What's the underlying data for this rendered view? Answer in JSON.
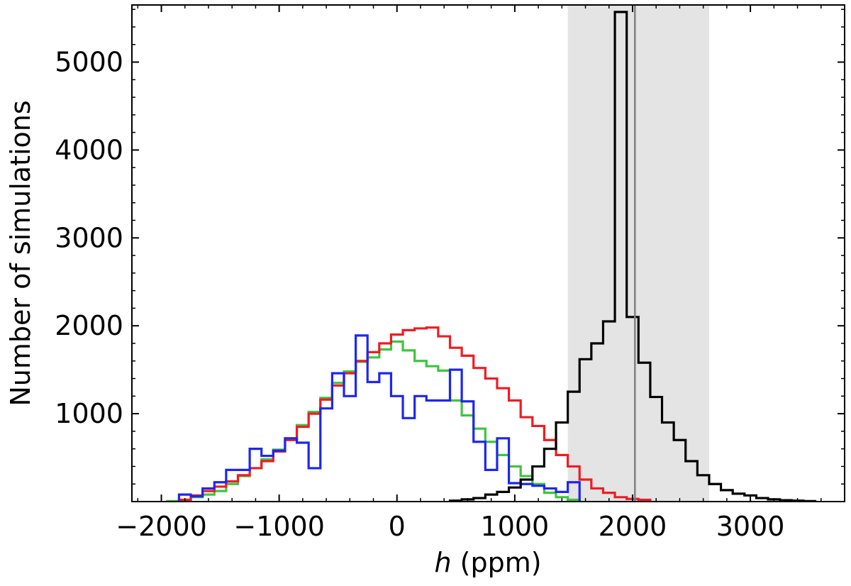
{
  "chart_data": {
    "type": "histogram",
    "title": "",
    "xlabel_italic": "h",
    "xlabel_rest": " (ppm)",
    "ylabel": "Number of simulations",
    "xlim": [
      -2250,
      3800
    ],
    "ylim": [
      0,
      5650
    ],
    "x_ticks": [
      -2000,
      -1000,
      0,
      1000,
      2000,
      3000
    ],
    "x_tick_labels": [
      "−2000",
      "−1000",
      "0",
      "1000",
      "2000",
      "3000"
    ],
    "y_ticks": [
      1000,
      2000,
      3000,
      4000,
      5000
    ],
    "y_tick_labels": [
      "1000",
      "2000",
      "3000",
      "4000",
      "5000"
    ],
    "shaded_band": {
      "x_range": [
        1450,
        2650
      ],
      "color": "#e4e4e4"
    },
    "vertical_line": {
      "x": 2020,
      "color": "#808080"
    },
    "bin_width": 100,
    "series": [
      {
        "color": "#3fc43f",
        "bin_start": -1950,
        "counts": [
          5,
          20,
          50,
          80,
          120,
          200,
          290,
          380,
          480,
          590,
          720,
          870,
          1020,
          1180,
          1350,
          1480,
          1590,
          1640,
          1730,
          1820,
          1720,
          1600,
          1540,
          1490,
          1150,
          980,
          830,
          680,
          530,
          400,
          290,
          200,
          100,
          50,
          20
        ]
      },
      {
        "color": "#ee1c24",
        "bin_start": -1850,
        "counts": [
          20,
          70,
          120,
          170,
          230,
          300,
          380,
          460,
          570,
          700,
          850,
          1000,
          1160,
          1320,
          1460,
          1600,
          1700,
          1800,
          1900,
          1950,
          1970,
          1980,
          1880,
          1750,
          1660,
          1520,
          1400,
          1290,
          1150,
          960,
          860,
          700,
          530,
          400,
          250,
          150,
          100,
          50,
          30,
          20
        ]
      },
      {
        "color": "#1e26f0",
        "bin_start": -1850,
        "counts": [
          80,
          60,
          150,
          220,
          360,
          360,
          600,
          520,
          580,
          720,
          670,
          380,
          1060,
          1460,
          1200,
          1890,
          1360,
          1460,
          1200,
          950,
          1200,
          1150,
          1150,
          1500,
          1140,
          680,
          360,
          720,
          210,
          200,
          180,
          150,
          110,
          220
        ]
      },
      {
        "color": "#000000",
        "bin_start": 450,
        "counts": [
          10,
          25,
          40,
          80,
          110,
          160,
          250,
          400,
          600,
          900,
          1250,
          1620,
          1800,
          2050,
          5570,
          2100,
          1580,
          1190,
          900,
          700,
          460,
          300,
          200,
          130,
          90,
          70,
          40,
          25,
          15,
          10,
          5
        ]
      }
    ]
  }
}
